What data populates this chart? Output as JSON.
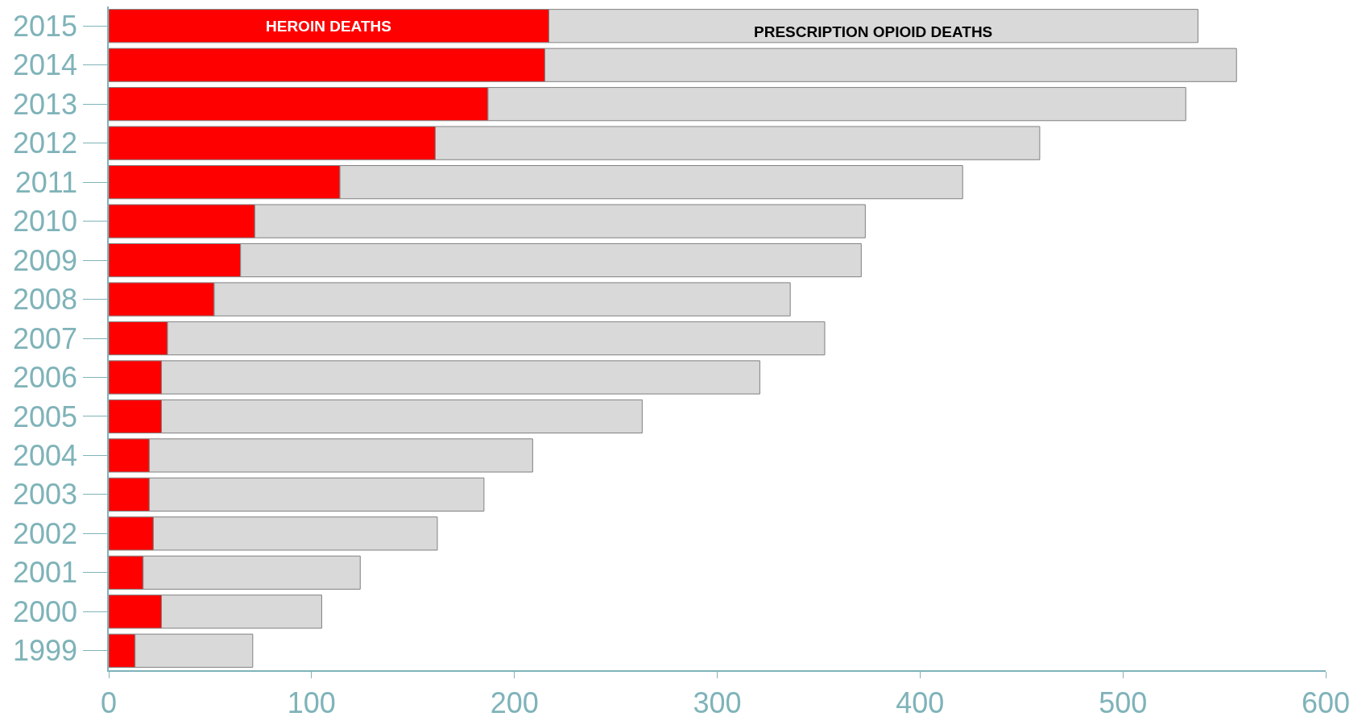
{
  "chart_data": {
    "type": "bar",
    "orientation": "horizontal",
    "stacked": true,
    "categories": [
      "2015",
      "2014",
      "2013",
      "2012",
      "2011",
      "2010",
      "2009",
      "2008",
      "2007",
      "2006",
      "2005",
      "2004",
      "2003",
      "2002",
      "2001",
      "2000",
      "1999"
    ],
    "series": [
      {
        "name": "HEROIN DEATHS",
        "color": "#ff0000",
        "values": [
          217,
          215,
          187,
          161,
          114,
          72,
          65,
          52,
          29,
          26,
          26,
          20,
          20,
          22,
          17,
          26,
          13
        ]
      },
      {
        "name": "PRESCRIPTION OPIOID DEATHS",
        "color": "#d9d9d9",
        "values": [
          320,
          341,
          344,
          298,
          307,
          301,
          306,
          284,
          324,
          295,
          237,
          189,
          165,
          140,
          107,
          79,
          58
        ]
      }
    ],
    "xlim": [
      0,
      600
    ],
    "xticks": [
      0,
      100,
      200,
      300,
      400,
      500,
      600
    ],
    "legend": false
  }
}
